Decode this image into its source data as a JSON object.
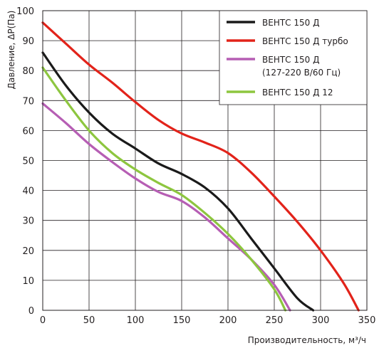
{
  "chart_data": {
    "type": "line",
    "title": "",
    "xlabel": "Производительность, м³/ч",
    "ylabel": "Давление, ΔP(Па)",
    "xlim": [
      0,
      350
    ],
    "ylim": [
      0,
      100
    ],
    "x_ticks": [
      "0",
      "50",
      "100",
      "150",
      "200",
      "250",
      "300",
      "350"
    ],
    "y_ticks": [
      "0",
      "10",
      "20",
      "30",
      "40",
      "50",
      "60",
      "70",
      "80",
      "90",
      "100"
    ],
    "grid": true,
    "legend_position": "top-right",
    "series": [
      {
        "name": "ВЕНТС 150 Д",
        "color": "#1a1a1a",
        "points": [
          [
            0,
            86
          ],
          [
            25,
            75
          ],
          [
            50,
            66
          ],
          [
            75,
            59
          ],
          [
            100,
            54
          ],
          [
            125,
            49
          ],
          [
            150,
            45.5
          ],
          [
            175,
            41
          ],
          [
            200,
            34
          ],
          [
            225,
            24
          ],
          [
            250,
            14
          ],
          [
            275,
            4
          ],
          [
            292,
            0
          ]
        ]
      },
      {
        "name": "ВЕНТС 150 Д турбо",
        "color": "#e2231a",
        "points": [
          [
            0,
            96
          ],
          [
            25,
            89
          ],
          [
            50,
            82
          ],
          [
            75,
            76
          ],
          [
            100,
            69.5
          ],
          [
            125,
            63.5
          ],
          [
            150,
            59
          ],
          [
            175,
            56
          ],
          [
            200,
            52.5
          ],
          [
            225,
            46
          ],
          [
            250,
            38
          ],
          [
            275,
            29.5
          ],
          [
            300,
            20
          ],
          [
            325,
            9
          ],
          [
            341,
            0
          ]
        ]
      },
      {
        "name": "ВЕНТС 150 Д\n(127-220 В/60 Гц)",
        "color": "#b65eb4",
        "points": [
          [
            0,
            69
          ],
          [
            25,
            62.5
          ],
          [
            50,
            55.5
          ],
          [
            75,
            49.5
          ],
          [
            100,
            44
          ],
          [
            125,
            39.5
          ],
          [
            150,
            36.5
          ],
          [
            175,
            31
          ],
          [
            200,
            24
          ],
          [
            225,
            17
          ],
          [
            250,
            8.5
          ],
          [
            267,
            0
          ]
        ]
      },
      {
        "name": "ВЕНТС 150 Д 12",
        "color": "#8dc63f",
        "points": [
          [
            0,
            81
          ],
          [
            25,
            70
          ],
          [
            50,
            60
          ],
          [
            75,
            52.5
          ],
          [
            100,
            47
          ],
          [
            125,
            42.5
          ],
          [
            150,
            38.5
          ],
          [
            175,
            32.5
          ],
          [
            200,
            25.5
          ],
          [
            225,
            17
          ],
          [
            250,
            7
          ],
          [
            262,
            0
          ]
        ]
      }
    ]
  }
}
